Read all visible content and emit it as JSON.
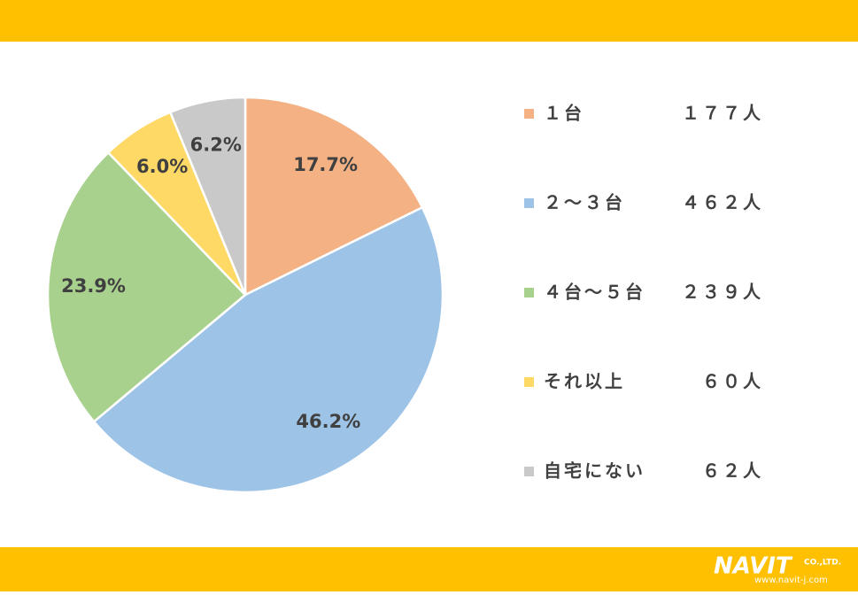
{
  "chart_data": {
    "type": "pie",
    "categories": [
      "１台",
      "２～３台",
      "４台～５台",
      "それ以上",
      "自宅にない"
    ],
    "legend_counts": [
      "１７７人",
      "４６２人",
      "２３９人",
      "６０人",
      "６２人"
    ],
    "values": [
      17.7,
      46.2,
      23.9,
      6.0,
      6.2
    ],
    "value_labels": [
      "17.7%",
      "46.2%",
      "23.9%",
      "6.0%",
      "6.2%"
    ],
    "colors": [
      "#F4B183",
      "#9DC3E6",
      "#A9D18E",
      "#FFD966",
      "#C9C9C9"
    ],
    "legend": "right"
  },
  "footer": {
    "logo": "NAVIT",
    "company": "CO.,LTD.",
    "url": "www.navit-j.com"
  }
}
